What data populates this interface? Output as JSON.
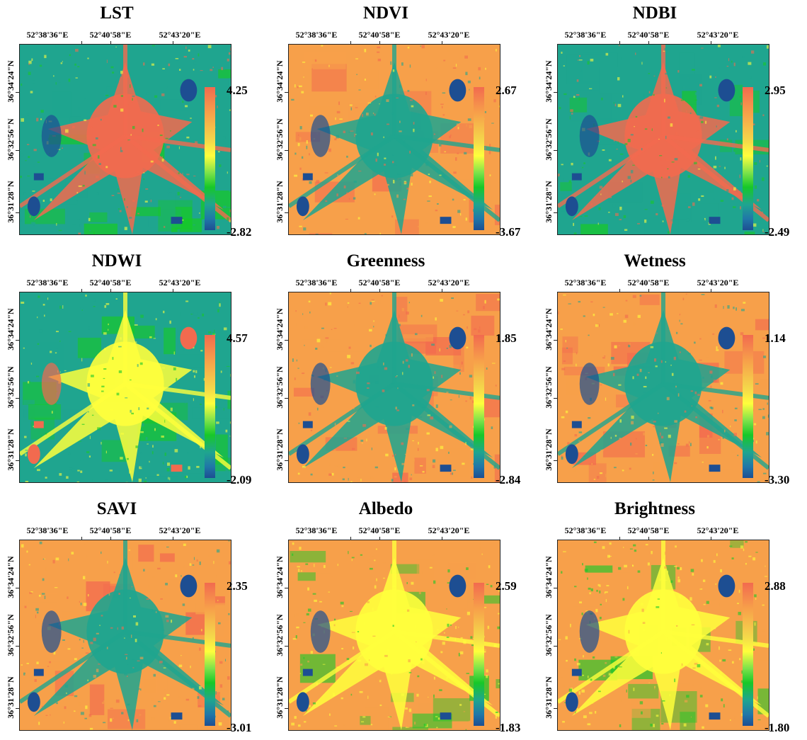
{
  "coordinates": {
    "longitudes": [
      "52°38'36\"E",
      "52°40'58\"E",
      "52°43'20\"E"
    ],
    "latitudes": [
      "36°34'24\"N",
      "36°32'56\"N",
      "36°31'28\"N"
    ]
  },
  "palette": {
    "high": "#f26a4f",
    "orange": "#f7a04a",
    "yellow": "#ffff3c",
    "green": "#17c828",
    "teal": "#1fa58f",
    "low": "#1d4e92"
  },
  "panels": [
    {
      "title": "LST",
      "max": "4.25",
      "min": "-2.82",
      "scheme": "urban-high"
    },
    {
      "title": "NDVI",
      "max": "2.67",
      "min": "-3.67",
      "scheme": "urban-low"
    },
    {
      "title": "NDBI",
      "max": "2.95",
      "min": "-2.49",
      "scheme": "urban-high"
    },
    {
      "title": "NDWI",
      "max": "4.57",
      "min": "-2.09",
      "scheme": "urban-yellow"
    },
    {
      "title": "Greenness",
      "max": "1.85",
      "min": "-2.84",
      "scheme": "urban-low"
    },
    {
      "title": "Wetness",
      "max": "1.14",
      "min": "-3.30",
      "scheme": "urban-low"
    },
    {
      "title": "SAVI",
      "max": "2.35",
      "min": "-3.01",
      "scheme": "urban-low"
    },
    {
      "title": "Albedo",
      "max": "2.59",
      "min": "-1.83",
      "scheme": "urban-mid"
    },
    {
      "title": "Brightness",
      "max": "2.88",
      "min": "-1.80",
      "scheme": "urban-mid"
    }
  ]
}
